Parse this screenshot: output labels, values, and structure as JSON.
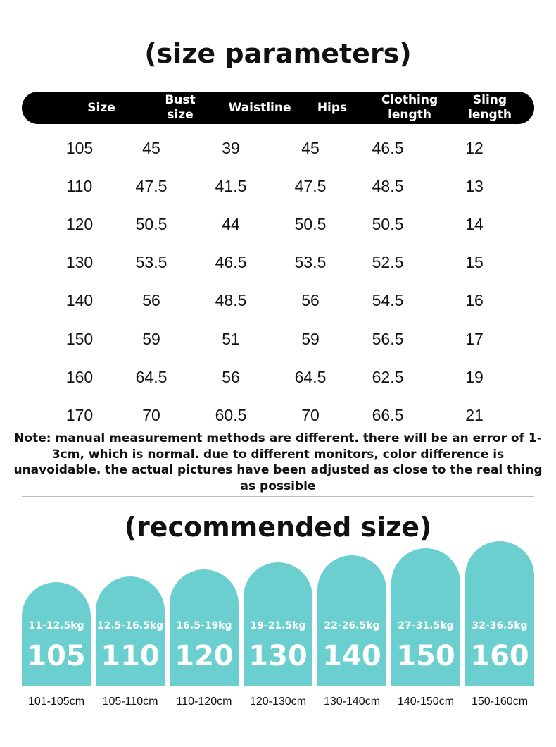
{
  "title": "(size parameters)",
  "table": {
    "headers": [
      [
        "Size"
      ],
      [
        "Bust",
        "size"
      ],
      [
        "Waistline"
      ],
      [
        "Hips"
      ],
      [
        "Clothing",
        "length"
      ],
      [
        "Sling",
        "length"
      ]
    ],
    "rows": [
      [
        "105",
        "45",
        "39",
        "45",
        "46.5",
        "12"
      ],
      [
        "110",
        "47.5",
        "41.5",
        "47.5",
        "48.5",
        "13"
      ],
      [
        "120",
        "50.5",
        "44",
        "50.5",
        "50.5",
        "14"
      ],
      [
        "130",
        "53.5",
        "46.5",
        "53.5",
        "52.5",
        "15"
      ],
      [
        "140",
        "56",
        "48.5",
        "56",
        "54.5",
        "16"
      ],
      [
        "150",
        "59",
        "51",
        "59",
        "56.5",
        "17"
      ],
      [
        "160",
        "64.5",
        "56",
        "64.5",
        "62.5",
        "19"
      ],
      [
        "170",
        "70",
        "60.5",
        "70",
        "66.5",
        "21"
      ]
    ]
  },
  "note": "Note: manual measurement methods are different. there will be an error of 1-3cm, which is normal. due to different monitors, color difference is unavoidable. the actual pictures have been adjusted as close to the real thing as possible",
  "recommended": {
    "title": "(recommended size)",
    "accent_color": "#6ccfcf",
    "items": [
      {
        "weight": "11-12.5kg",
        "size": "105",
        "height_range": "101-105cm"
      },
      {
        "weight": "12.5-16.5kg",
        "size": "110",
        "height_range": "105-110cm"
      },
      {
        "weight": "16.5-19kg",
        "size": "120",
        "height_range": "110-120cm"
      },
      {
        "weight": "19-21.5kg",
        "size": "130",
        "height_range": "120-130cm"
      },
      {
        "weight": "22-26.5kg",
        "size": "140",
        "height_range": "130-140cm"
      },
      {
        "weight": "27-31.5kg",
        "size": "150",
        "height_range": "140-150cm"
      },
      {
        "weight": "32-36.5kg",
        "size": "160",
        "height_range": "150-160cm"
      }
    ]
  }
}
